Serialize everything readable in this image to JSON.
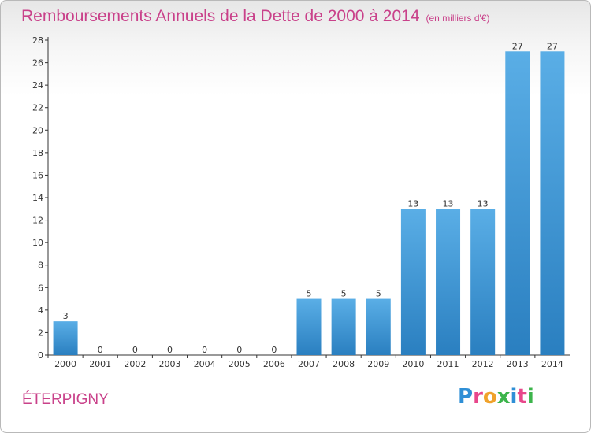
{
  "chart_data": {
    "type": "bar",
    "title": "Remboursements Annuels de la Dette de 2000 à 2014",
    "unit_label": "(en milliers d'€)",
    "categories": [
      "2000",
      "2001",
      "2002",
      "2003",
      "2004",
      "2005",
      "2006",
      "2007",
      "2008",
      "2009",
      "2010",
      "2011",
      "2012",
      "2013",
      "2014"
    ],
    "values": [
      3,
      0,
      0,
      0,
      0,
      0,
      0,
      5,
      5,
      5,
      13,
      13,
      13,
      27,
      27
    ],
    "ylim": [
      0,
      28
    ],
    "yticks": [
      0,
      2,
      4,
      6,
      8,
      10,
      12,
      14,
      16,
      18,
      20,
      22,
      24,
      26,
      28
    ],
    "grid": false,
    "bar_color_top": "#5aaee6",
    "bar_color_bottom": "#2a7fc0"
  },
  "commune": "ÉTERPIGNY",
  "logo": {
    "letters": [
      "P",
      "r",
      "o",
      "x",
      "i",
      "t",
      "i"
    ],
    "colors": [
      "#2f8fd6",
      "#e8478b",
      "#f0a22b",
      "#3cb44b",
      "#2f8fd6",
      "#e8478b",
      "#3cb44b"
    ]
  }
}
